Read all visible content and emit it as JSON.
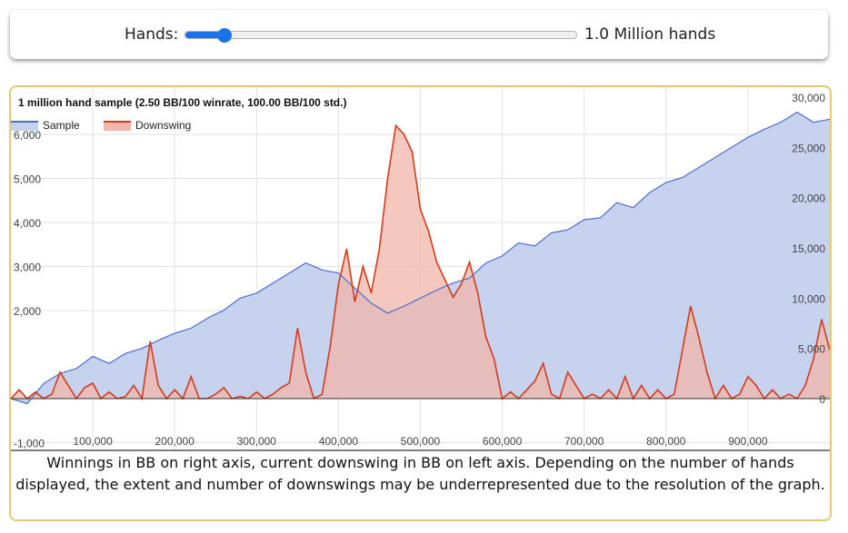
{
  "slider": {
    "label": "Hands:",
    "value_text": "1.0 Million hands",
    "fraction": 0.1
  },
  "caption": "Winnings in BB on right axis, current downswing in BB on left axis. Depending on the number of hands displayed, the extent and number of downswings may be underrepresented due to the resolution of the graph.",
  "colors": {
    "sample_fill": "#c4d0ee",
    "sample_line": "#4b6fcf",
    "downswing_fill": "#f0b6aa",
    "downswing_line": "#d43b1c",
    "card_border": "#e5c774",
    "slider_accent": "#1a73e8"
  },
  "chart_data": {
    "type": "area",
    "title": "1 million hand sample (2.50 BB/100 winrate, 100.00 BB/100 std.)",
    "legend_position": "top-left",
    "grid": true,
    "x": {
      "range": [
        0,
        1000000
      ],
      "ticks": [
        100000,
        200000,
        300000,
        400000,
        500000,
        600000,
        700000,
        800000,
        900000
      ],
      "tick_labels": [
        "100,000",
        "200,000",
        "300,000",
        "400,000",
        "500,000",
        "600,000",
        "700,000",
        "800,000",
        "900,000"
      ]
    },
    "y_left": {
      "range": [
        -1000,
        7000
      ],
      "ticks": [
        -1000,
        2000,
        3000,
        4000,
        5000,
        6000
      ],
      "tick_labels": [
        "-1,000",
        "2,000",
        "3,000",
        "4,000",
        "5,000",
        "6,000"
      ]
    },
    "y_right": {
      "range": [
        -5000,
        30000
      ],
      "ticks": [
        0,
        5000,
        10000,
        15000,
        20000,
        25000,
        30000
      ],
      "tick_labels": [
        "0",
        "5,000",
        "10,000",
        "15,000",
        "20,000",
        "25,000",
        "30,000"
      ]
    },
    "series": [
      {
        "name": "Sample",
        "axis": "right",
        "x": [
          0,
          20000,
          40000,
          60000,
          80000,
          100000,
          120000,
          140000,
          160000,
          180000,
          200000,
          220000,
          240000,
          260000,
          280000,
          300000,
          320000,
          340000,
          360000,
          380000,
          400000,
          420000,
          440000,
          460000,
          480000,
          500000,
          520000,
          540000,
          560000,
          580000,
          600000,
          620000,
          640000,
          660000,
          680000,
          700000,
          720000,
          740000,
          760000,
          780000,
          800000,
          820000,
          840000,
          860000,
          880000,
          900000,
          920000,
          940000,
          960000,
          980000,
          1000000
        ],
        "values": [
          0,
          -500,
          1500,
          2500,
          3000,
          4200,
          3500,
          4500,
          5000,
          5800,
          6500,
          7000,
          8000,
          8800,
          10000,
          10500,
          11500,
          12500,
          13500,
          12800,
          12500,
          11000,
          9500,
          8500,
          9200,
          10000,
          10800,
          11500,
          12000,
          13500,
          14200,
          15500,
          15200,
          16500,
          16800,
          17800,
          18000,
          19500,
          19000,
          20500,
          21500,
          22000,
          23000,
          24000,
          25000,
          26000,
          26800,
          27500,
          28500,
          27500,
          27800
        ]
      },
      {
        "name": "Downswing",
        "axis": "left",
        "x": [
          0,
          10000,
          20000,
          30000,
          40000,
          50000,
          60000,
          70000,
          80000,
          90000,
          100000,
          110000,
          120000,
          130000,
          140000,
          150000,
          160000,
          170000,
          180000,
          190000,
          200000,
          210000,
          220000,
          230000,
          240000,
          250000,
          260000,
          270000,
          280000,
          290000,
          300000,
          310000,
          320000,
          330000,
          340000,
          350000,
          360000,
          370000,
          380000,
          390000,
          400000,
          410000,
          420000,
          430000,
          440000,
          450000,
          460000,
          470000,
          480000,
          490000,
          500000,
          510000,
          520000,
          530000,
          540000,
          550000,
          560000,
          570000,
          580000,
          590000,
          600000,
          610000,
          620000,
          630000,
          640000,
          650000,
          660000,
          670000,
          680000,
          690000,
          700000,
          710000,
          720000,
          730000,
          740000,
          750000,
          760000,
          770000,
          780000,
          790000,
          800000,
          810000,
          820000,
          830000,
          840000,
          850000,
          860000,
          870000,
          880000,
          890000,
          900000,
          910000,
          920000,
          930000,
          940000,
          950000,
          960000,
          970000,
          980000,
          990000,
          1000000
        ],
        "values": [
          0,
          200,
          0,
          150,
          0,
          100,
          600,
          300,
          0,
          250,
          350,
          0,
          150,
          0,
          50,
          300,
          0,
          1300,
          300,
          0,
          200,
          0,
          500,
          0,
          0,
          100,
          250,
          0,
          50,
          0,
          150,
          0,
          100,
          250,
          350,
          1600,
          600,
          0,
          100,
          1200,
          2600,
          3400,
          2200,
          3000,
          2400,
          3400,
          5000,
          6200,
          6000,
          5600,
          4300,
          3800,
          3100,
          2700,
          2300,
          2600,
          3100,
          2400,
          1400,
          900,
          0,
          150,
          0,
          200,
          400,
          800,
          100,
          0,
          600,
          300,
          0,
          100,
          0,
          200,
          0,
          500,
          0,
          300,
          0,
          200,
          0,
          100,
          1100,
          2100,
          1400,
          600,
          0,
          300,
          0,
          100,
          500,
          300,
          0,
          200,
          0,
          100,
          0,
          300,
          900,
          1800,
          1100
        ]
      }
    ]
  }
}
